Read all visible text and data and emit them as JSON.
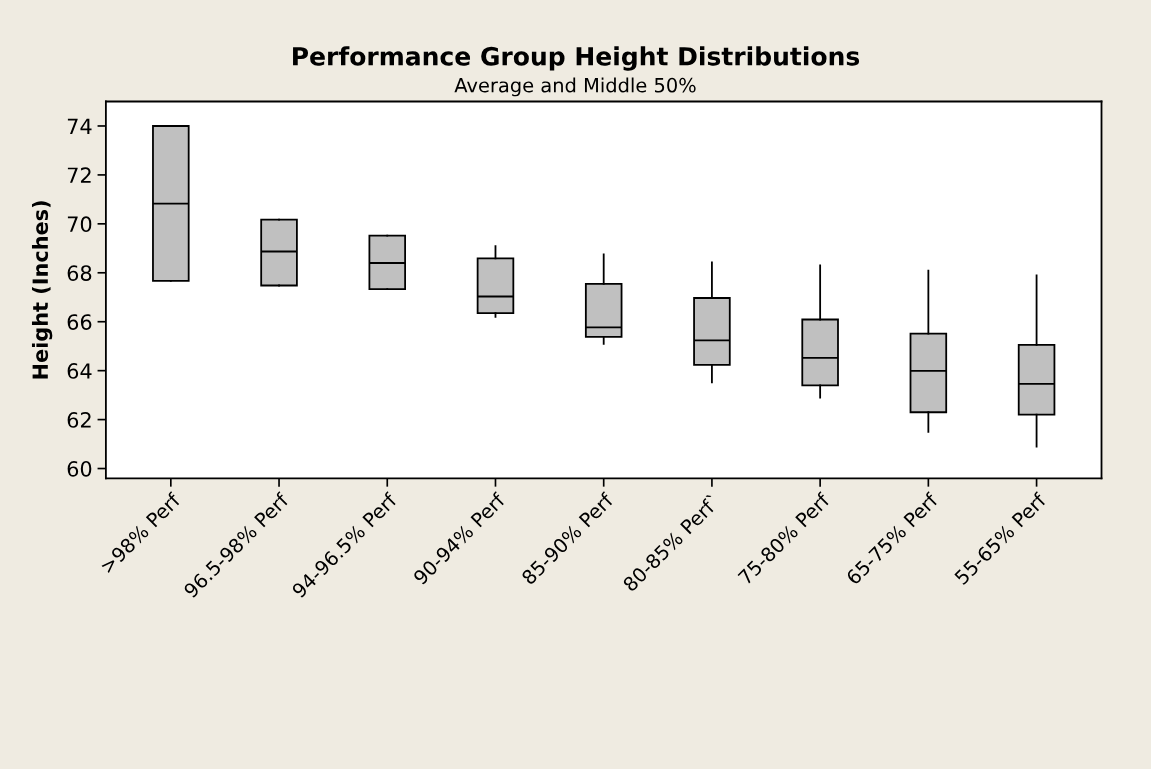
{
  "chart_data": {
    "type": "box",
    "title": "Performance Group Height Distributions",
    "subtitle": "Average and Middle 50%",
    "ylabel": "Height (Inches)",
    "categories": [
      ">98% Perf",
      "96.5-98% Perf",
      "94-96.5% Perf",
      "90-94% Perf",
      "85-90% Perf",
      "80-85% Perf`",
      "75-80% Perf",
      "65-75% Perf",
      "55-65% Perf"
    ],
    "boxes": [
      {
        "low": 67.67,
        "q1": 67.67,
        "median": 70.83,
        "q3": 74.0,
        "high": 74.0
      },
      {
        "low": 67.48,
        "q1": 67.48,
        "median": 68.87,
        "q3": 70.17,
        "high": 70.17
      },
      {
        "low": 67.33,
        "q1": 67.33,
        "median": 68.4,
        "q3": 69.52,
        "high": 69.52
      },
      {
        "low": 66.2,
        "q1": 66.35,
        "median": 67.03,
        "q3": 68.59,
        "high": 69.09
      },
      {
        "low": 65.1,
        "q1": 65.38,
        "median": 65.77,
        "q3": 67.55,
        "high": 68.75
      },
      {
        "low": 63.52,
        "q1": 64.24,
        "median": 65.24,
        "q3": 66.97,
        "high": 68.42
      },
      {
        "low": 62.9,
        "q1": 63.4,
        "median": 64.52,
        "q3": 66.09,
        "high": 68.3
      },
      {
        "low": 61.5,
        "q1": 62.3,
        "median": 63.99,
        "q3": 65.51,
        "high": 68.09
      },
      {
        "low": 60.9,
        "q1": 62.2,
        "median": 63.46,
        "q3": 65.05,
        "high": 67.89
      }
    ],
    "color": "#c0c0c0",
    "ylim": [
      59.6,
      75.0
    ],
    "yticks": [
      60,
      62,
      64,
      66,
      68,
      70,
      72,
      74
    ],
    "grid": false
  }
}
